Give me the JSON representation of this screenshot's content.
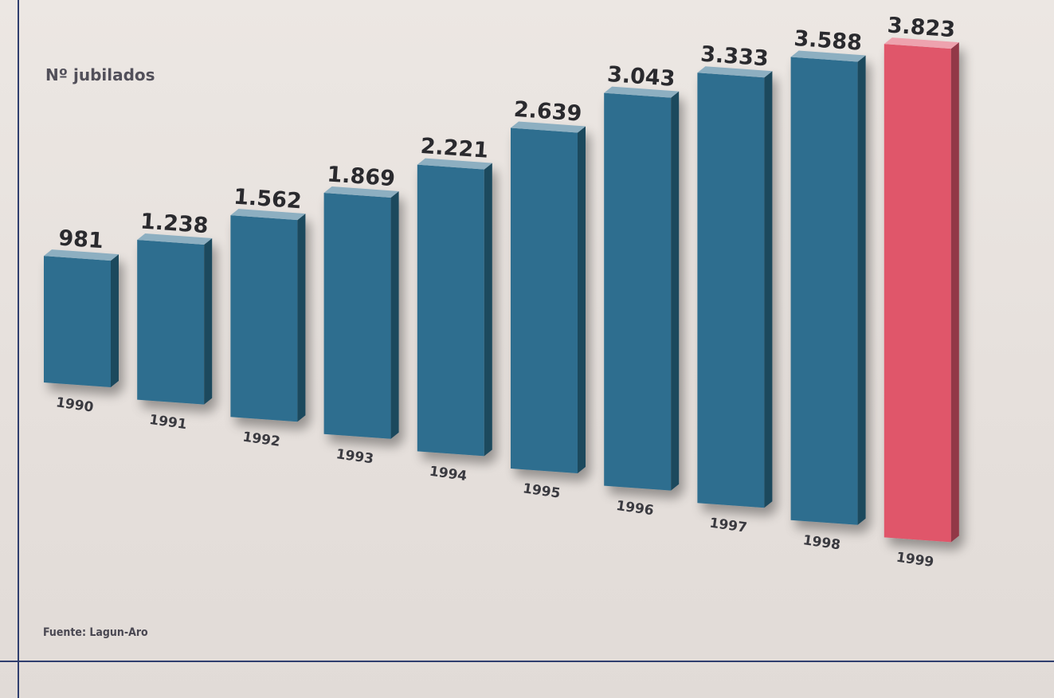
{
  "chart_data": {
    "type": "bar",
    "ylabel": "Nº jubilados",
    "source": "Fuente: Lagun-Aro",
    "categories": [
      "1990",
      "1991",
      "1992",
      "1993",
      "1994",
      "1995",
      "1996",
      "1997",
      "1998",
      "1999"
    ],
    "values": [
      981,
      1238,
      1562,
      1869,
      2221,
      2639,
      3043,
      3333,
      3588,
      3823
    ],
    "value_labels": [
      "981",
      "1.238",
      "1.562",
      "1.869",
      "2.221",
      "2.639",
      "3.043",
      "3.333",
      "3.588",
      "3.823"
    ],
    "colors": {
      "bar": "#2f6e8f",
      "highlight_bar": "#e0566b",
      "highlight_category": "1999"
    },
    "grid": false,
    "legend": "none"
  }
}
